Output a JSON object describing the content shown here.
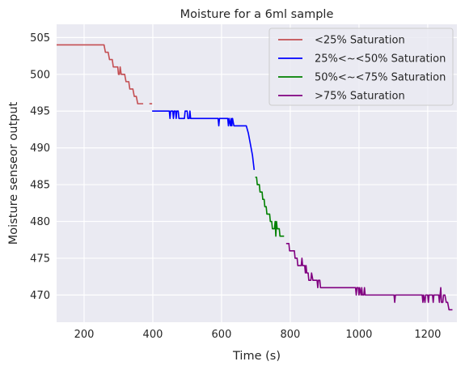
{
  "chart_data": {
    "type": "line",
    "title": "Moisture for a 6ml sample",
    "xlabel": "Time (s)",
    "ylabel": "Moisture senseor output",
    "xlim": [
      120,
      1285
    ],
    "ylim": [
      466.3,
      506.8
    ],
    "xticks": [
      200,
      400,
      600,
      800,
      1000,
      1200
    ],
    "yticks": [
      470,
      475,
      480,
      485,
      490,
      495,
      500,
      505
    ],
    "grid": true,
    "background": "#eaeaf2",
    "grid_color": "#ffffff",
    "legend_position": "top-right",
    "series": [
      {
        "name": "<25% Saturation",
        "color": "#c44e52",
        "points": [
          [
            120,
            504
          ],
          [
            258,
            504
          ],
          [
            262,
            503
          ],
          [
            270,
            503
          ],
          [
            274,
            502
          ],
          [
            282,
            502
          ],
          [
            285,
            501
          ],
          [
            298,
            501
          ],
          [
            300,
            500
          ],
          [
            303,
            500
          ],
          [
            305,
            501
          ],
          [
            308,
            500
          ],
          [
            318,
            500
          ],
          [
            322,
            499
          ],
          [
            330,
            499
          ],
          [
            333,
            498
          ],
          [
            342,
            498
          ],
          [
            346,
            497
          ],
          [
            352,
            497
          ],
          [
            356,
            496
          ],
          [
            372,
            496
          ]
        ],
        "segments_extra": [
          [
            [
              390,
              496
            ],
            [
              398,
              496
            ]
          ]
        ]
      },
      {
        "name": "25%<~<50% Saturation",
        "color": "#0000ff",
        "points": [
          [
            398,
            495
          ],
          [
            448,
            495
          ],
          [
            450,
            494
          ],
          [
            452,
            495
          ],
          [
            458,
            495
          ],
          [
            460,
            494
          ],
          [
            462,
            495
          ],
          [
            466,
            495
          ],
          [
            468,
            494
          ],
          [
            470,
            495
          ],
          [
            474,
            495
          ],
          [
            476,
            494
          ],
          [
            492,
            494
          ],
          [
            494,
            495
          ],
          [
            500,
            495
          ],
          [
            502,
            494
          ],
          [
            506,
            494
          ],
          [
            508,
            495
          ],
          [
            510,
            494
          ],
          [
            590,
            494
          ],
          [
            592,
            493
          ],
          [
            594,
            494
          ],
          [
            618,
            494
          ],
          [
            620,
            493
          ],
          [
            622,
            494
          ],
          [
            626,
            493
          ],
          [
            628,
            494
          ],
          [
            630,
            493
          ],
          [
            632,
            494
          ],
          [
            636,
            493
          ],
          [
            672,
            493
          ],
          [
            678,
            492
          ],
          [
            682,
            491
          ],
          [
            686,
            490
          ],
          [
            690,
            489
          ],
          [
            695,
            487
          ]
        ]
      },
      {
        "name": "50%<~<75% Saturation",
        "color": "#008000",
        "points": [
          [
            698,
            486
          ],
          [
            702,
            486
          ],
          [
            704,
            485
          ],
          [
            710,
            485
          ],
          [
            712,
            484
          ],
          [
            718,
            484
          ],
          [
            720,
            483
          ],
          [
            724,
            483
          ],
          [
            726,
            482
          ],
          [
            730,
            482
          ],
          [
            732,
            481
          ],
          [
            740,
            481
          ],
          [
            742,
            480
          ],
          [
            746,
            480
          ],
          [
            748,
            479
          ],
          [
            754,
            479
          ],
          [
            756,
            480
          ],
          [
            758,
            478
          ],
          [
            760,
            480
          ],
          [
            762,
            479
          ],
          [
            768,
            479
          ],
          [
            770,
            478
          ],
          [
            782,
            478
          ]
        ]
      },
      {
        "name": ">75% Saturation",
        "color": "#800080",
        "points": [
          [
            788,
            477
          ],
          [
            796,
            477
          ],
          [
            798,
            476
          ],
          [
            812,
            476
          ],
          [
            814,
            475
          ],
          [
            820,
            475
          ],
          [
            822,
            474
          ],
          [
            832,
            474
          ],
          [
            834,
            475
          ],
          [
            836,
            474
          ],
          [
            842,
            474
          ],
          [
            844,
            473
          ],
          [
            846,
            474
          ],
          [
            848,
            473
          ],
          [
            852,
            473
          ],
          [
            854,
            472
          ],
          [
            860,
            472
          ],
          [
            862,
            473
          ],
          [
            866,
            472
          ],
          [
            878,
            472
          ],
          [
            880,
            471
          ],
          [
            882,
            472
          ],
          [
            886,
            472
          ],
          [
            888,
            471
          ],
          [
            990,
            471
          ],
          [
            992,
            470
          ],
          [
            994,
            471
          ],
          [
            998,
            471
          ],
          [
            1000,
            470
          ],
          [
            1002,
            471
          ],
          [
            1006,
            470
          ],
          [
            1008,
            471
          ],
          [
            1010,
            470
          ],
          [
            1014,
            470
          ],
          [
            1016,
            471
          ],
          [
            1018,
            470
          ],
          [
            1102,
            470
          ],
          [
            1104,
            469
          ],
          [
            1106,
            470
          ],
          [
            1184,
            470
          ],
          [
            1186,
            469
          ],
          [
            1188,
            470
          ],
          [
            1192,
            469
          ],
          [
            1194,
            470
          ],
          [
            1200,
            470
          ],
          [
            1202,
            469
          ],
          [
            1204,
            470
          ],
          [
            1214,
            470
          ],
          [
            1216,
            469
          ],
          [
            1218,
            470
          ],
          [
            1232,
            470
          ],
          [
            1234,
            469
          ],
          [
            1236,
            470
          ],
          [
            1238,
            471
          ],
          [
            1240,
            469
          ],
          [
            1244,
            469
          ],
          [
            1246,
            470
          ],
          [
            1250,
            470
          ],
          [
            1254,
            469
          ],
          [
            1258,
            469
          ],
          [
            1262,
            468
          ],
          [
            1272,
            468
          ]
        ]
      }
    ]
  }
}
